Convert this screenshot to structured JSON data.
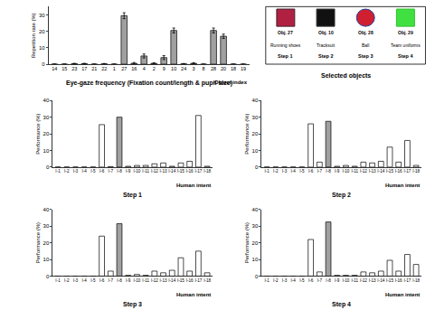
{
  "chart_data": [
    {
      "type": "bar",
      "title": "Eye-gaze frequency (Fixation count/length & pupil size)",
      "xlabel": "Object index",
      "ylabel": "Repetition rate (%)",
      "categories": [
        "14",
        "15",
        "23",
        "17",
        "21",
        "22",
        "1",
        "27",
        "16",
        "4",
        "2",
        "9",
        "10",
        "24",
        "3",
        "8",
        "28",
        "20",
        "18",
        "19"
      ],
      "values": [
        0,
        0,
        0.3,
        0.3,
        0,
        0.2,
        0,
        29.5,
        0.5,
        5,
        0.5,
        4,
        20.5,
        0.2,
        0.5,
        0,
        20.5,
        17,
        0,
        0
      ],
      "errors": [
        0,
        0,
        0.2,
        0.2,
        0,
        0.2,
        0,
        1.8,
        0.5,
        1.2,
        0.4,
        1.2,
        1.5,
        0.2,
        0.4,
        0,
        1.5,
        1.3,
        0,
        0
      ],
      "colors": [
        "#a0a0a0",
        "#a0a0a0",
        "#a0a0a0",
        "#a0a0a0",
        "#a0a0a0",
        "#a0a0a0",
        "#a0a0a0",
        "#a0a0a0",
        "#a0a0a0",
        "#a0a0a0",
        "#a0a0a0",
        "#a0a0a0",
        "#a0a0a0",
        "#a0a0a0",
        "#a0a0a0",
        "#a0a0a0",
        "#a0a0a0",
        "#a0a0a0",
        "#a0a0a0",
        "#a0a0a0"
      ],
      "ylim": [
        0,
        35
      ],
      "yticks": [
        0,
        10,
        20,
        30
      ]
    },
    {
      "type": "bar",
      "title": "Step 1",
      "xlabel": "Human intent",
      "ylabel": "Performance (%)",
      "categories": [
        "I-1",
        "I-2",
        "I-3",
        "I-4",
        "I-5",
        "I-6",
        "I-7",
        "I-8",
        "I-9",
        "I-10",
        "I-11",
        "I-12",
        "I-13",
        "I-14",
        "I-15",
        "I-16",
        "I-17",
        "I-18"
      ],
      "values": [
        0,
        0,
        0,
        0,
        0,
        25.5,
        0.3,
        30,
        0.5,
        1,
        1,
        2,
        2.5,
        0.5,
        2.5,
        3.5,
        31,
        0.5
      ],
      "colors": [
        "#ffffff",
        "#ffffff",
        "#ffffff",
        "#ffffff",
        "#ffffff",
        "#ffffff",
        "#ffffff",
        "#a0a0a0",
        "#ffffff",
        "#ffffff",
        "#ffffff",
        "#ffffff",
        "#ffffff",
        "#ffffff",
        "#ffffff",
        "#ffffff",
        "#ffffff",
        "#ffffff"
      ],
      "ylim": [
        0,
        40
      ],
      "yticks": [
        0,
        10,
        20,
        30,
        40
      ]
    },
    {
      "type": "bar",
      "title": "Step 2",
      "xlabel": "Human intent",
      "ylabel": "Performance (%)",
      "categories": [
        "I-1",
        "I-2",
        "I-3",
        "I-4",
        "I-5",
        "I-6",
        "I-7",
        "I-8",
        "I-9",
        "I-10",
        "I-11",
        "I-12",
        "I-13",
        "I-14",
        "I-15",
        "I-16",
        "I-17",
        "I-18"
      ],
      "values": [
        0,
        0,
        0,
        0,
        0,
        26,
        3,
        27.5,
        0.5,
        1,
        0.5,
        3,
        2.5,
        3.5,
        12,
        3,
        16,
        1
      ],
      "colors": [
        "#ffffff",
        "#ffffff",
        "#ffffff",
        "#ffffff",
        "#ffffff",
        "#ffffff",
        "#ffffff",
        "#a0a0a0",
        "#ffffff",
        "#ffffff",
        "#ffffff",
        "#ffffff",
        "#ffffff",
        "#ffffff",
        "#ffffff",
        "#ffffff",
        "#ffffff",
        "#ffffff"
      ],
      "ylim": [
        0,
        40
      ],
      "yticks": [
        0,
        10,
        20,
        30,
        40
      ]
    },
    {
      "type": "bar",
      "title": "Step 3",
      "xlabel": "Human intent",
      "ylabel": "Performance (%)",
      "categories": [
        "I-1",
        "I-2",
        "I-3",
        "I-4",
        "I-5",
        "I-6",
        "I-7",
        "I-8",
        "I-9",
        "I-10",
        "I-11",
        "I-12",
        "I-13",
        "I-14",
        "I-15",
        "I-16",
        "I-17",
        "I-18"
      ],
      "values": [
        0,
        0,
        0,
        0,
        0,
        24,
        3,
        31.5,
        0.5,
        1,
        0.5,
        3,
        2,
        3.5,
        11,
        3,
        15,
        2
      ],
      "colors": [
        "#ffffff",
        "#ffffff",
        "#ffffff",
        "#ffffff",
        "#ffffff",
        "#ffffff",
        "#ffffff",
        "#a0a0a0",
        "#ffffff",
        "#ffffff",
        "#ffffff",
        "#ffffff",
        "#ffffff",
        "#ffffff",
        "#ffffff",
        "#ffffff",
        "#ffffff",
        "#ffffff"
      ],
      "ylim": [
        0,
        40
      ],
      "yticks": [
        0,
        10,
        20,
        30,
        40
      ]
    },
    {
      "type": "bar",
      "title": "Step 4",
      "xlabel": "Human intent",
      "ylabel": "Performance (%)",
      "categories": [
        "I-1",
        "I-2",
        "I-3",
        "I-4",
        "I-5",
        "I-6",
        "I-7",
        "I-8",
        "I-9",
        "I-10",
        "I-11",
        "I-12",
        "I-13",
        "I-14",
        "I-15",
        "I-16",
        "I-17",
        "I-18"
      ],
      "values": [
        0,
        0,
        0,
        0,
        0,
        22,
        2.5,
        32.5,
        0.5,
        0.5,
        0.5,
        2.5,
        2,
        3,
        9.5,
        3,
        13,
        7
      ],
      "colors": [
        "#ffffff",
        "#ffffff",
        "#ffffff",
        "#ffffff",
        "#ffffff",
        "#ffffff",
        "#ffffff",
        "#a0a0a0",
        "#ffffff",
        "#ffffff",
        "#ffffff",
        "#ffffff",
        "#ffffff",
        "#ffffff",
        "#ffffff",
        "#ffffff",
        "#ffffff",
        "#ffffff"
      ],
      "ylim": [
        0,
        40
      ],
      "yticks": [
        0,
        10,
        20,
        30,
        40
      ]
    }
  ],
  "selected_objects": {
    "title": "Selected objects",
    "items": [
      {
        "object": "Obj. 27",
        "name": "Running shoes",
        "step": "Step 1"
      },
      {
        "object": "Obj. 10",
        "name": "Tracksuit",
        "step": "Step 2"
      },
      {
        "object": "Obj. 28",
        "name": "Ball",
        "step": "Step 3"
      },
      {
        "object": "Obj. 29",
        "name": "Team uniforms",
        "step": "Step 4"
      }
    ]
  }
}
